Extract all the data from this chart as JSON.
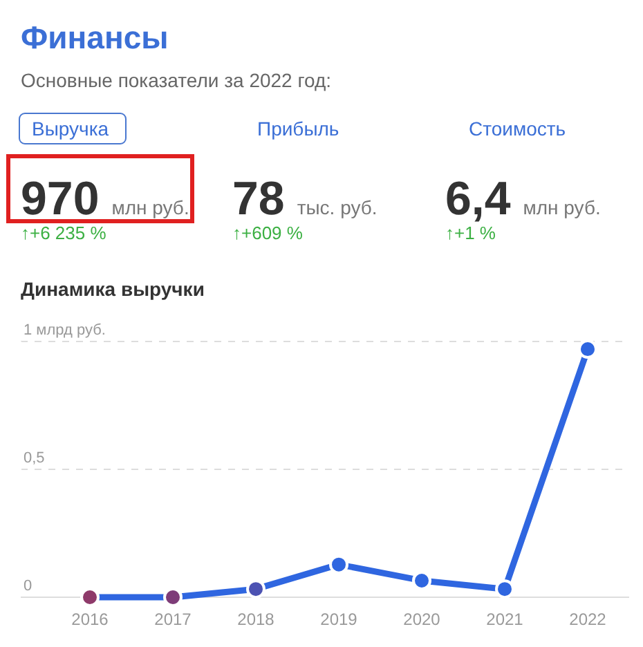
{
  "chart_data": [
    {
      "type": "other",
      "title": "Финансы",
      "subtitle": "Основные показатели за 2022 год:",
      "annotations": [
        "Выручка",
        "Прибыль",
        "Стоимость",
        "970",
        "78",
        "6,4",
        "млн руб.",
        "тыс. руб.",
        "млн руб.",
        "↑+6 235 %",
        "↑+609 %",
        "↑+1 %"
      ]
    },
    {
      "type": "line",
      "title": "Динамика выручки",
      "categories": [
        "2016",
        "2017",
        "2018",
        "2019",
        "2020",
        "2021",
        "2022"
      ],
      "series": [
        {
          "color": "#2f66e0",
          "colors": [
            "#8e3a6a",
            "#7e3c78",
            "#4c52b2",
            "#2f66e0",
            "#2f66e0",
            "#2f66e0",
            "#2f66e0"
          ],
          "values": [
            0,
            0,
            0.032,
            0.128,
            0.065,
            0.032,
            0.97
          ]
        }
      ],
      "ylim": [
        0,
        1
      ],
      "yticks": [
        {
          "value": 0,
          "label": "0"
        },
        {
          "value": 0.5,
          "label": "0,5"
        },
        {
          "value": 1,
          "label": "1 млрд руб."
        }
      ],
      "grid": "y",
      "marker": "circle",
      "line_style": "solid"
    }
  ]
}
